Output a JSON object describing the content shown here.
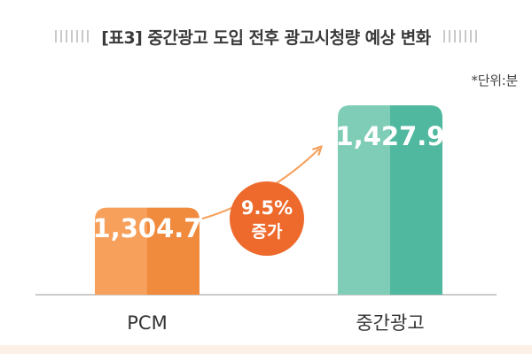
{
  "title": "[표3] 중간광고 도입 전후 광고시청량 예상 변화",
  "unit_note": "*단위:분",
  "annotation": {
    "line1": "9.5%",
    "line2": "증가"
  },
  "colors": {
    "bar_pcm_left": "#f6a05c",
    "bar_pcm_right": "#f08a3d",
    "bar_mid_left": "#7fcdb6",
    "bar_mid_right": "#50b89e",
    "badge": "#ee6a2c",
    "arrow": "#f6a05c",
    "baseline": "#9a9a9a"
  },
  "chart_data": {
    "type": "bar",
    "title": "[표3] 중간광고 도입 전후 광고시청량 예상 변화",
    "categories": [
      "PCM",
      "중간광고"
    ],
    "values": [
      1304.7,
      1427.9
    ],
    "value_labels": [
      "1,304.7",
      "1,427.9"
    ],
    "xlabel": "",
    "ylabel": "",
    "grid": false,
    "legend": "none"
  }
}
